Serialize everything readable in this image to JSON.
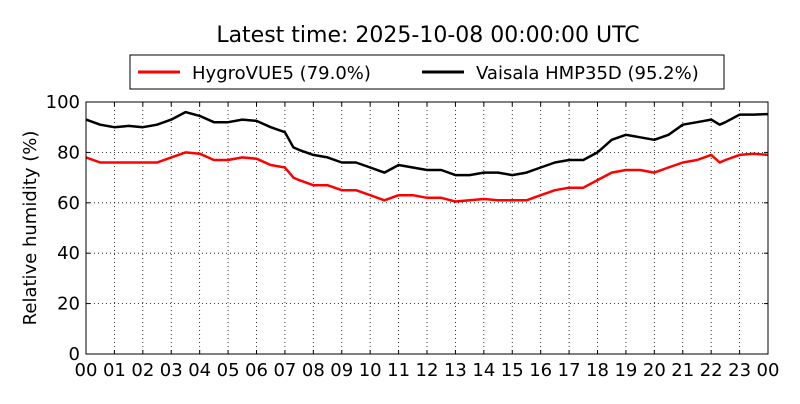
{
  "chart_data": {
    "type": "line",
    "title": "Latest time: 2025-10-08 00:00:00 UTC",
    "xlabel": "",
    "ylabel": "Relative humidity (%)",
    "xlim": [
      0,
      24
    ],
    "ylim": [
      0,
      100
    ],
    "yticks": [
      0,
      20,
      40,
      60,
      80,
      100
    ],
    "xtick_labels": [
      "00",
      "01",
      "02",
      "03",
      "04",
      "05",
      "06",
      "07",
      "08",
      "09",
      "10",
      "11",
      "12",
      "13",
      "14",
      "15",
      "16",
      "17",
      "18",
      "19",
      "20",
      "21",
      "22",
      "23",
      "00"
    ],
    "grid": true,
    "legend_placement": "top-center",
    "x": [
      0,
      0.5,
      1,
      1.5,
      2,
      2.5,
      3,
      3.5,
      4,
      4.5,
      5,
      5.5,
      6,
      6.5,
      7,
      7.3,
      7.5,
      8,
      8.5,
      9,
      9.5,
      10,
      10.5,
      11,
      11.5,
      12,
      12.5,
      13,
      13.5,
      14,
      14.5,
      15,
      15.5,
      16,
      16.5,
      17,
      17.5,
      18,
      18.5,
      19,
      19.5,
      20,
      20.5,
      21,
      21.5,
      22,
      22.3,
      22.5,
      23,
      23.5,
      24
    ],
    "series": [
      {
        "name": "HygroVUE5 (79.0%)",
        "color": "#ff0000",
        "values": [
          78,
          76,
          76,
          76,
          76,
          76,
          78,
          80,
          79.5,
          77,
          77,
          78,
          77.5,
          75,
          74,
          70,
          69,
          67,
          67,
          65,
          65,
          63,
          61,
          63,
          63,
          62,
          62,
          60.5,
          61,
          61.5,
          61,
          61,
          61,
          63,
          65,
          66,
          66,
          69,
          72,
          73,
          73,
          72,
          74,
          76,
          77,
          79,
          76,
          77,
          79,
          79.5,
          79
        ]
      },
      {
        "name": "Vaisala HMP35D (95.2%)",
        "color": "#000000",
        "values": [
          93,
          91,
          90,
          90.5,
          90,
          91,
          93,
          96,
          94.5,
          92,
          92,
          93,
          92.5,
          90,
          88,
          82,
          81,
          79,
          78,
          76,
          76,
          74,
          72,
          75,
          74,
          73,
          73,
          71,
          71,
          72,
          72,
          71,
          72,
          74,
          76,
          77,
          77,
          80,
          85,
          87,
          86,
          85,
          87,
          91,
          92,
          93,
          91,
          92,
          95,
          95,
          95.2
        ]
      }
    ]
  }
}
